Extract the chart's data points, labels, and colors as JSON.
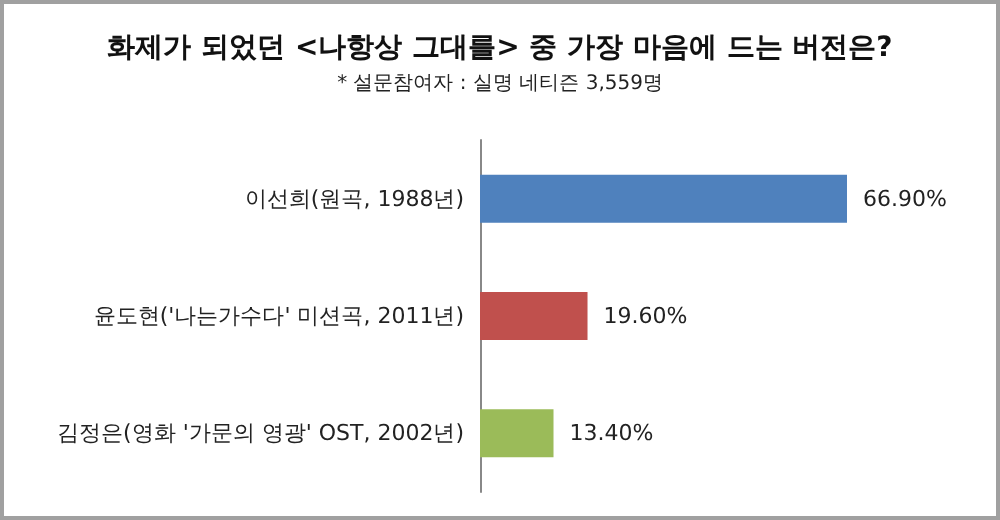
{
  "chart_data": {
    "type": "bar",
    "orientation": "horizontal",
    "title": "화제가 되었던 <나항상 그대를> 중 가장 마음에 드는 버전은?",
    "subtitle": "* 설문참여자 : 실명 네티즌 3,559명",
    "categories": [
      "이선희(원곡, 1988년)",
      "윤도현('나는가수다' 미션곡, 2011년)",
      "김정은(영화 '가문의 영광' OST, 2002년)"
    ],
    "values": [
      66.9,
      19.6,
      13.4
    ],
    "colors": [
      "#4f81bd",
      "#c0504d",
      "#9bbb59"
    ],
    "value_labels": [
      "66.90%",
      "19.60%",
      "13.40%"
    ],
    "tick_labels": "y"
  }
}
